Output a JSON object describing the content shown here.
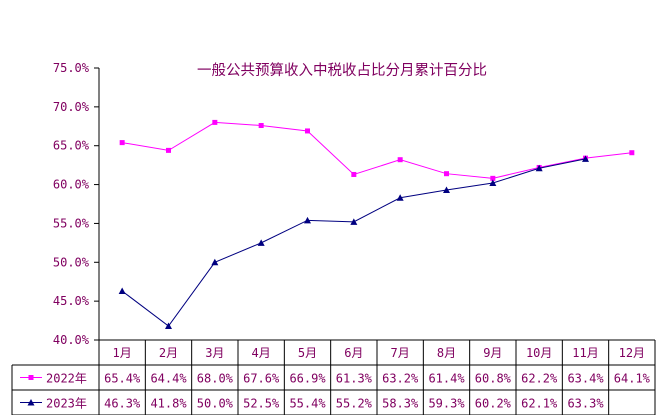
{
  "chart_data": {
    "type": "line",
    "title": "一般公共预算收入中税收占比分月累计百分比",
    "categories": [
      "1月",
      "2月",
      "3月",
      "4月",
      "5月",
      "6月",
      "7月",
      "8月",
      "9月",
      "10月",
      "11月",
      "12月"
    ],
    "ylim": [
      40.0,
      75.0
    ],
    "yticks": [
      "40.0%",
      "45.0%",
      "50.0%",
      "55.0%",
      "60.0%",
      "65.0%",
      "70.0%",
      "75.0%"
    ],
    "ytick_values": [
      40,
      45,
      50,
      55,
      60,
      65,
      70,
      75
    ],
    "grid": false,
    "legend": "bottom-table",
    "series": [
      {
        "name": "2022年",
        "color": "#ff00ff",
        "marker": "square",
        "values": [
          65.4,
          64.4,
          68.0,
          67.6,
          66.9,
          61.3,
          63.2,
          61.4,
          60.8,
          62.2,
          63.4,
          64.1
        ],
        "labels": [
          "65.4%",
          "64.4%",
          "68.0%",
          "67.6%",
          "66.9%",
          "61.3%",
          "63.2%",
          "61.4%",
          "60.8%",
          "62.2%",
          "63.4%",
          "64.1%"
        ]
      },
      {
        "name": "2023年",
        "color": "#000080",
        "marker": "triangle",
        "values": [
          46.3,
          41.8,
          50.0,
          52.5,
          55.4,
          55.2,
          58.3,
          59.3,
          60.2,
          62.1,
          63.3,
          null
        ],
        "labels": [
          "46.3%",
          "41.8%",
          "50.0%",
          "52.5%",
          "55.4%",
          "55.2%",
          "58.3%",
          "59.3%",
          "60.2%",
          "62.1%",
          "63.3%",
          ""
        ]
      }
    ]
  }
}
